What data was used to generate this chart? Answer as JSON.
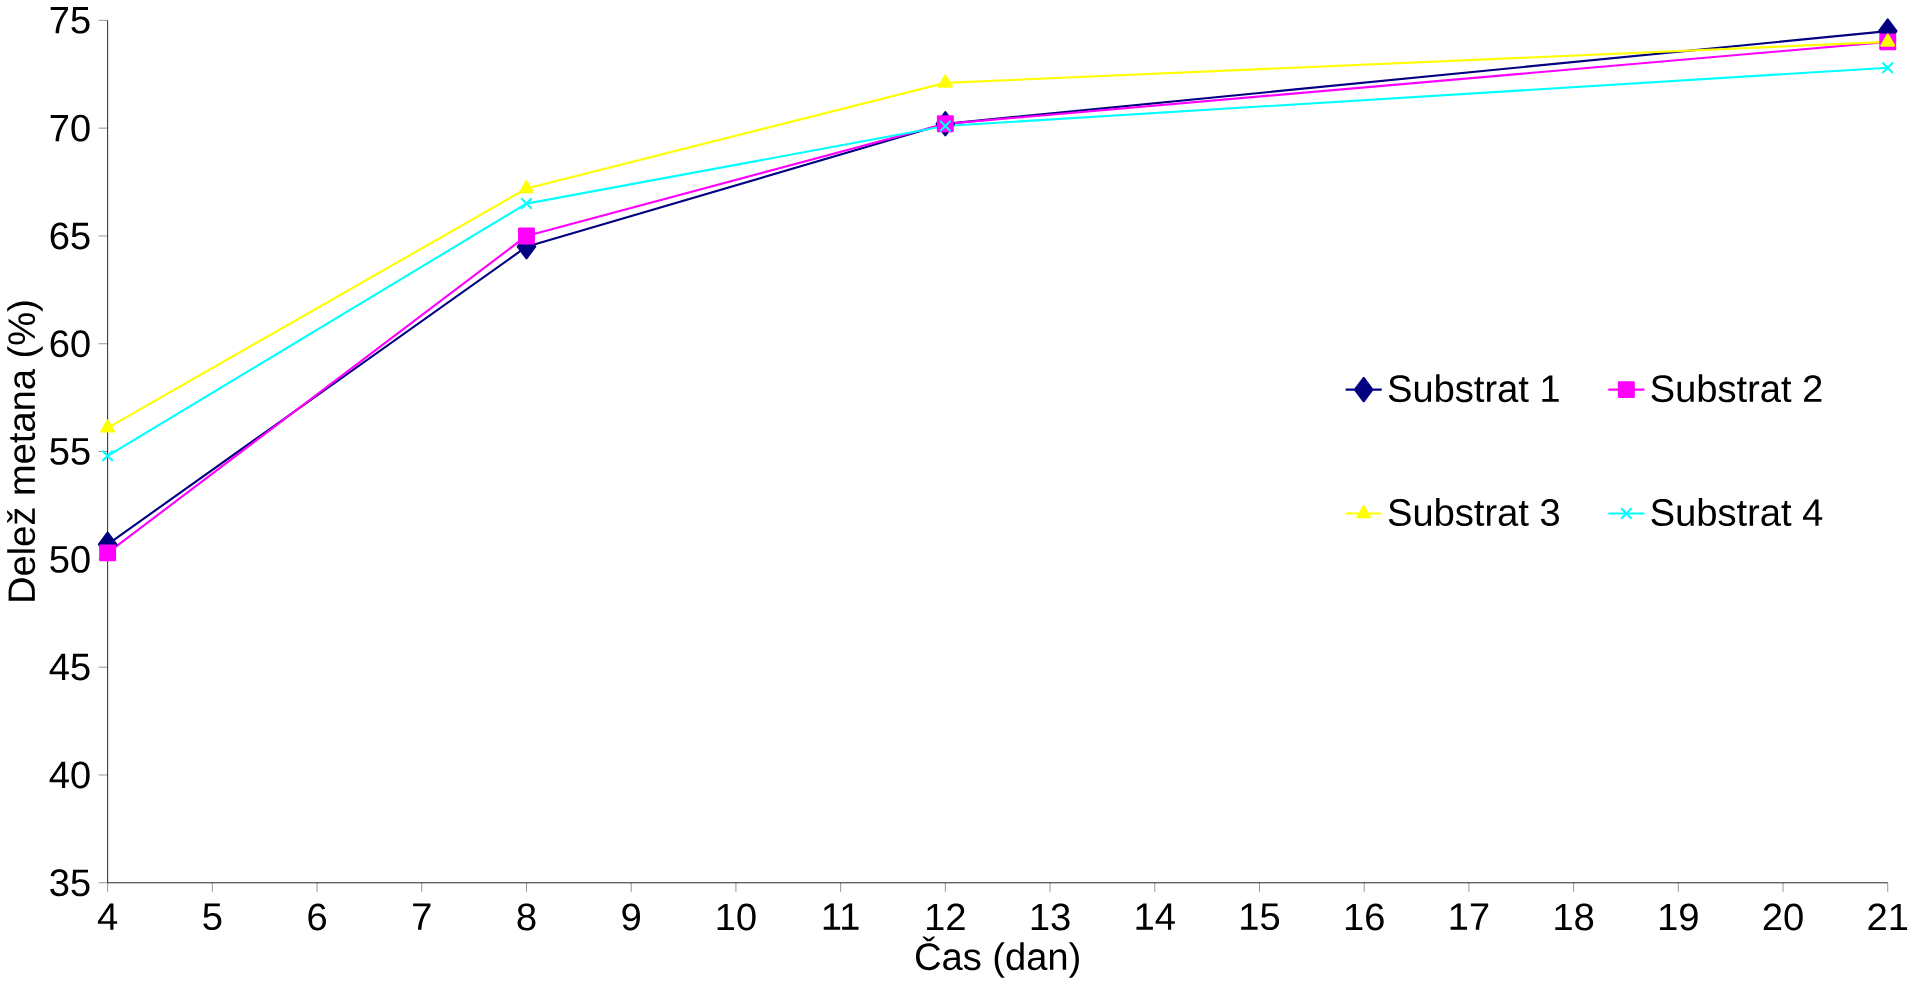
{
  "chart_data": {
    "type": "line",
    "xlabel": "Čas (dan)",
    "ylabel": "Delež metana (%)",
    "x": [
      4,
      8,
      12,
      21
    ],
    "series": [
      {
        "name": "Substrat 1",
        "color": "#000080",
        "marker": "diamond",
        "values": [
          50.7,
          64.5,
          70.2,
          74.5
        ]
      },
      {
        "name": "Substrat 2",
        "color": "#ff00ff",
        "marker": "square",
        "values": [
          50.3,
          65.0,
          70.2,
          74.0
        ]
      },
      {
        "name": "Substrat 3",
        "color": "#ffff00",
        "marker": "triangle",
        "values": [
          56.1,
          67.2,
          72.1,
          74.0
        ]
      },
      {
        "name": "Substrat 4",
        "color": "#00ffff",
        "marker": "cross",
        "values": [
          54.8,
          66.5,
          70.1,
          72.8
        ]
      }
    ],
    "xlim": [
      4,
      21
    ],
    "xticks": [
      4,
      5,
      6,
      7,
      8,
      9,
      10,
      11,
      12,
      13,
      14,
      15,
      16,
      17,
      18,
      19,
      20,
      21
    ],
    "ylim": [
      35,
      75
    ],
    "yticks": [
      35,
      40,
      45,
      50,
      55,
      60,
      65,
      70,
      75
    ],
    "grid": false,
    "legend": "right"
  }
}
